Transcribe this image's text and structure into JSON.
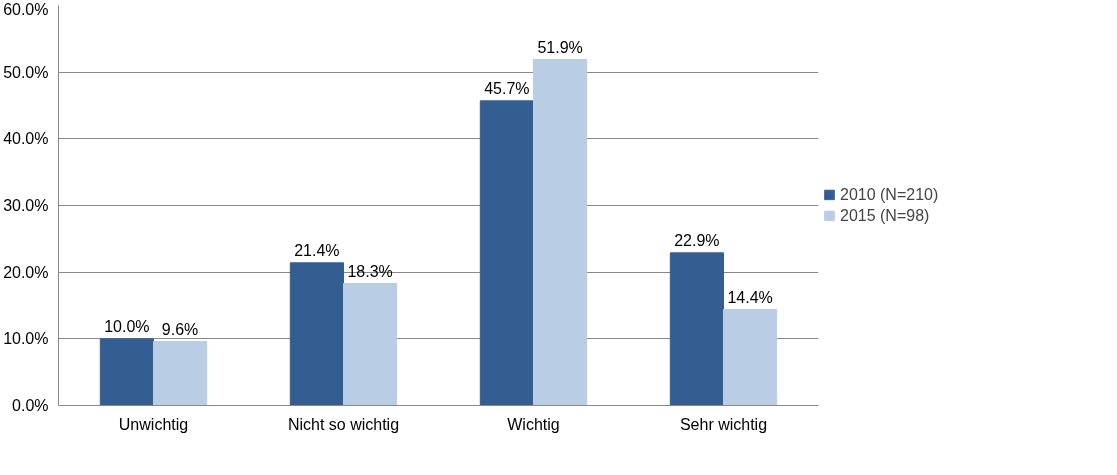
{
  "chart_data": {
    "type": "bar",
    "categories": [
      "Unwichtig",
      "Nicht so wichtig",
      "Wichtig",
      "Sehr wichtig"
    ],
    "series": [
      {
        "name": "2010 (N=210)",
        "color": "#345e91",
        "values": [
          10.0,
          21.4,
          45.7,
          22.9
        ],
        "value_labels": [
          "10.0%",
          "21.4%",
          "45.7%",
          "22.9%"
        ]
      },
      {
        "name": "2015 (N=98)",
        "color": "#b9cde5",
        "values": [
          9.6,
          18.3,
          51.9,
          14.4
        ],
        "value_labels": [
          "9.6%",
          "18.3%",
          "51.9%",
          "14.4%"
        ]
      }
    ],
    "ylim": [
      0,
      60
    ],
    "yticks": [
      {
        "value": 0,
        "label": "0.0%"
      },
      {
        "value": 10,
        "label": "10.0%"
      },
      {
        "value": 20,
        "label": "20.0%"
      },
      {
        "value": 30,
        "label": "30.0%"
      },
      {
        "value": 40,
        "label": "40.0%"
      },
      {
        "value": 50,
        "label": "50.0%"
      },
      {
        "value": 60,
        "label": "60.0%"
      }
    ],
    "grid": "y",
    "legend": "right"
  }
}
